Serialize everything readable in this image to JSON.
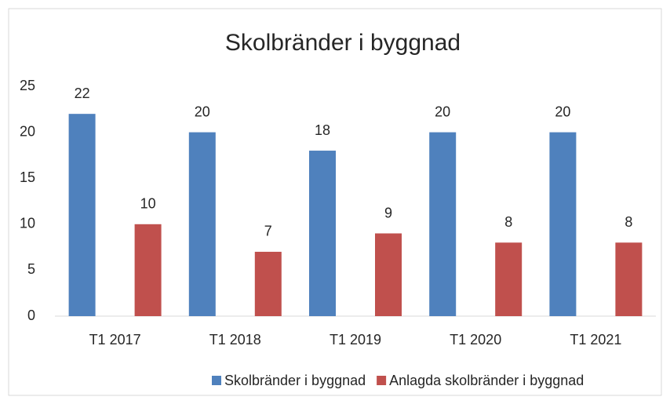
{
  "chart_data": {
    "type": "bar",
    "title": "Skolbränder i byggnad",
    "categories": [
      "T1 2017",
      "T1 2018",
      "T1 2019",
      "T1 2020",
      "T1 2021"
    ],
    "series": [
      {
        "name": "Skolbränder i byggnad",
        "color": "#4f81bd",
        "values": [
          22,
          20,
          18,
          20,
          20
        ]
      },
      {
        "name": "Anlagda skolbränder i byggnad",
        "color": "#c0504d",
        "values": [
          10,
          7,
          9,
          8,
          8
        ]
      }
    ],
    "ylim": [
      0,
      25
    ],
    "yticks": [
      0,
      5,
      10,
      15,
      20,
      25
    ],
    "legend": "bottom"
  }
}
